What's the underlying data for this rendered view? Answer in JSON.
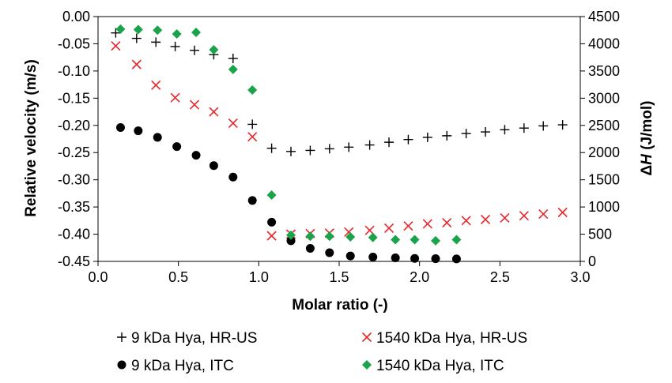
{
  "chart_data": {
    "type": "scatter",
    "xlabel": "Molar ratio (-)",
    "ylabel_left": "Relative velocity (m/s)",
    "ylabel_right_prefix": "Δ",
    "ylabel_right_symbol": "H",
    "ylabel_right_suffix": " (J/mol)",
    "xlim": [
      0.0,
      3.0
    ],
    "ylim_left": [
      -0.45,
      0.0
    ],
    "ylim_right": [
      0,
      4500
    ],
    "x_ticks": [
      "0.0",
      "0.5",
      "1.0",
      "1.5",
      "2.0",
      "2.5",
      "3.0"
    ],
    "y_left_ticks": [
      "0.00",
      "-0.05",
      "-0.10",
      "-0.15",
      "-0.20",
      "-0.25",
      "-0.30",
      "-0.35",
      "-0.40",
      "-0.45"
    ],
    "y_right_ticks": [
      "4500",
      "4000",
      "3500",
      "3000",
      "2500",
      "2000",
      "1500",
      "1000",
      "500",
      "0"
    ],
    "grid": false,
    "legend_position": "bottom",
    "series": [
      {
        "name": "9 kDa Hya, HR-US",
        "axis": "left",
        "marker": "plus",
        "color": "#000000",
        "x": [
          0.11,
          0.24,
          0.36,
          0.48,
          0.6,
          0.72,
          0.84,
          0.96,
          1.08,
          1.2,
          1.32,
          1.44,
          1.56,
          1.69,
          1.81,
          1.93,
          2.05,
          2.17,
          2.29,
          2.41,
          2.53,
          2.65,
          2.77,
          2.89
        ],
        "y": [
          -0.03,
          -0.04,
          -0.047,
          -0.055,
          -0.062,
          -0.07,
          -0.077,
          -0.198,
          -0.242,
          -0.248,
          -0.246,
          -0.243,
          -0.24,
          -0.236,
          -0.231,
          -0.226,
          -0.222,
          -0.219,
          -0.215,
          -0.212,
          -0.208,
          -0.205,
          -0.201,
          -0.199
        ]
      },
      {
        "name": "1540 kDa Hya, HR-US",
        "axis": "left",
        "marker": "cross",
        "color": "#e8262b",
        "x": [
          0.11,
          0.24,
          0.36,
          0.48,
          0.6,
          0.72,
          0.84,
          0.96,
          1.08,
          1.2,
          1.32,
          1.44,
          1.56,
          1.69,
          1.81,
          1.93,
          2.05,
          2.17,
          2.29,
          2.41,
          2.53,
          2.65,
          2.77,
          2.89
        ],
        "y": [
          -0.054,
          -0.088,
          -0.126,
          -0.149,
          -0.162,
          -0.175,
          -0.196,
          -0.221,
          -0.403,
          -0.4,
          -0.399,
          -0.398,
          -0.396,
          -0.393,
          -0.389,
          -0.385,
          -0.381,
          -0.379,
          -0.375,
          -0.373,
          -0.37,
          -0.366,
          -0.363,
          -0.36
        ]
      },
      {
        "name": "9 kDa Hya, ITC",
        "axis": "right",
        "marker": "circle",
        "color": "#000000",
        "x": [
          0.14,
          0.25,
          0.37,
          0.49,
          0.61,
          0.72,
          0.84,
          0.96,
          1.08,
          1.2,
          1.32,
          1.44,
          1.57,
          1.71,
          1.85,
          1.97,
          2.1,
          2.23
        ],
        "y": [
          2460,
          2400,
          2280,
          2110,
          1950,
          1760,
          1550,
          1120,
          720,
          380,
          240,
          160,
          100,
          80,
          65,
          55,
          50,
          45
        ]
      },
      {
        "name": "1540 kDa Hya, ITC",
        "axis": "right",
        "marker": "diamond",
        "color": "#1aa34a",
        "x": [
          0.14,
          0.25,
          0.37,
          0.49,
          0.61,
          0.72,
          0.84,
          0.96,
          1.08,
          1.2,
          1.32,
          1.44,
          1.57,
          1.71,
          1.85,
          1.97,
          2.1,
          2.23
        ],
        "y": [
          4270,
          4260,
          4250,
          4180,
          4210,
          3890,
          3530,
          3150,
          1220,
          480,
          460,
          460,
          450,
          440,
          400,
          400,
          380,
          400
        ]
      }
    ]
  },
  "legend": {
    "items": [
      {
        "label": "9 kDa Hya, HR-US",
        "marker": "plus"
      },
      {
        "label": "1540 kDa Hya, HR-US",
        "marker": "cross"
      },
      {
        "label": "9 kDa Hya, ITC",
        "marker": "circle"
      },
      {
        "label": "1540 kDa Hya, ITC",
        "marker": "diamond"
      }
    ]
  }
}
